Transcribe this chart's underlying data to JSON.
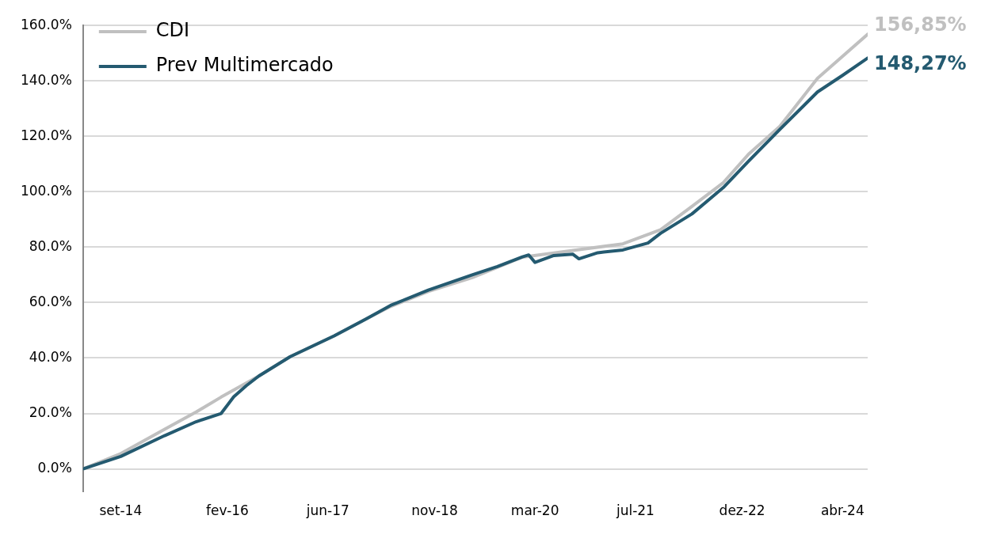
{
  "chart_data": {
    "type": "line",
    "xlim": [
      "2014-03",
      "2024-08"
    ],
    "xticks": [
      {
        "value": "2014-09",
        "label": "set-14"
      },
      {
        "value": "2016-02",
        "label": "fev-16"
      },
      {
        "value": "2017-06",
        "label": "jun-17"
      },
      {
        "value": "2018-11",
        "label": "nov-18"
      },
      {
        "value": "2020-03",
        "label": "mar-20"
      },
      {
        "value": "2021-07",
        "label": "jul-21"
      },
      {
        "value": "2022-12",
        "label": "dez-22"
      },
      {
        "value": "2024-04",
        "label": "abr-24"
      }
    ],
    "ylim": [
      -8,
      160
    ],
    "yticks": [
      {
        "value": 0,
        "label": "0.0%"
      },
      {
        "value": 20,
        "label": "20.0%"
      },
      {
        "value": 40,
        "label": "40.0%"
      },
      {
        "value": 60,
        "label": "60.0%"
      },
      {
        "value": 80,
        "label": "80.0%"
      },
      {
        "value": 100,
        "label": "100.0%"
      },
      {
        "value": 120,
        "label": "120.0%"
      },
      {
        "value": 140,
        "label": "140.0%"
      },
      {
        "value": 160,
        "label": "160.0%"
      }
    ],
    "grid": "y",
    "legend": "top left",
    "marker": "none",
    "line_style": "solid",
    "series": [
      {
        "name": "CDI",
        "color": "#c0c0c0",
        "x": [
          "2014-03",
          "2014-09",
          "2015-04",
          "2015-09",
          "2016-01",
          "2016-07",
          "2016-12",
          "2017-07",
          "2017-12",
          "2018-04",
          "2018-10",
          "2019-05",
          "2020-01",
          "2020-10",
          "2021-05",
          "2021-11",
          "2022-04",
          "2022-09",
          "2023-01",
          "2023-06",
          "2023-12",
          "2024-08"
        ],
        "values": [
          0,
          5.5,
          14.3,
          20.5,
          25.9,
          33.5,
          40.5,
          48,
          54,
          58.6,
          64,
          69,
          76.4,
          79.1,
          81.2,
          86.3,
          94.7,
          103.3,
          113.5,
          123.6,
          140.9,
          156.85
        ]
      },
      {
        "name": "Prev Multimercado",
        "color": "#245a70",
        "x": [
          "2014-03",
          "2014-09",
          "2015-04",
          "2015-09",
          "2016-01",
          "2016-03",
          "2016-05",
          "2016-07",
          "2016-12",
          "2017-07",
          "2017-12",
          "2018-04",
          "2018-10",
          "2019-05",
          "2019-09",
          "2020-01",
          "2020-02",
          "2020-03",
          "2020-06",
          "2020-09",
          "2020-10",
          "2021-01",
          "2021-05",
          "2021-09",
          "2021-11",
          "2022-04",
          "2022-09",
          "2023-01",
          "2023-06",
          "2023-12",
          "2024-04",
          "2024-08"
        ],
        "values": [
          0,
          4.5,
          12,
          17,
          20,
          26,
          30,
          33.5,
          40.5,
          48,
          54,
          59,
          64.5,
          70,
          73,
          76.5,
          77.2,
          74.5,
          77,
          77.5,
          75.8,
          78,
          79,
          81.5,
          85,
          92,
          101.5,
          111,
          122.5,
          136,
          142,
          148.27
        ]
      }
    ],
    "annotations": [
      {
        "text": "156,85%",
        "x": "2024-08",
        "y": 156.85
      },
      {
        "text": "148,27%",
        "x": "2024-08",
        "y": 148.27
      }
    ]
  }
}
